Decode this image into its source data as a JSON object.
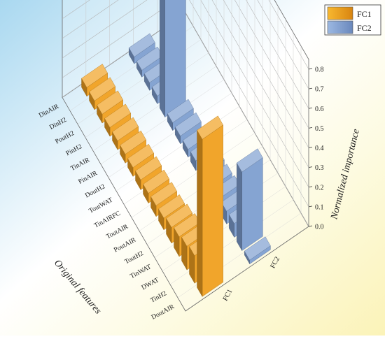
{
  "chart_data": {
    "type": "bar",
    "subtype": "3d-bar",
    "title": "",
    "xlabel": "Original features",
    "ylabel": "",
    "zlabel": "Normalized importance",
    "zlim": [
      0,
      0.8
    ],
    "zticks": [
      "0.0",
      "0.1",
      "0.2",
      "0.3",
      "0.4",
      "0.5",
      "0.6",
      "0.7",
      "0.8"
    ],
    "grid": true,
    "legend_position": "top-right",
    "categories": [
      "DoutAIR",
      "TinH2",
      "DWAT",
      "TinWAT",
      "ToutH2",
      "PoutAIR",
      "ToutAIR",
      "TinAIRFC",
      "ToutWAT",
      "DoutH2",
      "PinAIR",
      "TinAIR",
      "PinH2",
      "PoutH2",
      "DinH2",
      "DinAIR"
    ],
    "series": [
      {
        "name": "FC1",
        "color": "#f0a020",
        "values": [
          0.8,
          0.14,
          0.12,
          0.1,
          0.08,
          0.06,
          0.055,
          0.05,
          0.05,
          0.045,
          0.045,
          0.045,
          0.045,
          0.045,
          0.045,
          0.045
        ]
      },
      {
        "name": "FC2",
        "color": "#7f9fd0",
        "values": [
          0.02,
          0.4,
          0.07,
          0.065,
          0.06,
          0.05,
          0.05,
          0.05,
          0.04,
          0.04,
          0.04,
          0.75,
          0.04,
          0.04,
          0.035,
          0.035
        ]
      }
    ]
  }
}
